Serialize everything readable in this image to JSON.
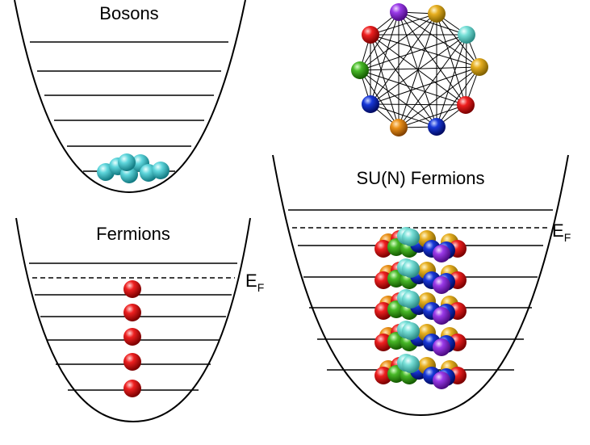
{
  "panels": {
    "bosons": {
      "title": "Bosons"
    },
    "fermions": {
      "title": "Fermions",
      "fermi_label": "E",
      "fermi_sub": "F"
    },
    "sun_fermions": {
      "title": "SU(N) Fermions",
      "fermi_label": "E",
      "fermi_sub": "F"
    }
  },
  "colors": {
    "boson": "#3ec4cc",
    "fermion": "#e01010",
    "flavors": [
      "#8b2be0",
      "#e0a010",
      "#6ad8d0",
      "#e01010",
      "#1030d0",
      "#e08810",
      "#1a50d0",
      "#40b020",
      "#d01010"
    ]
  }
}
